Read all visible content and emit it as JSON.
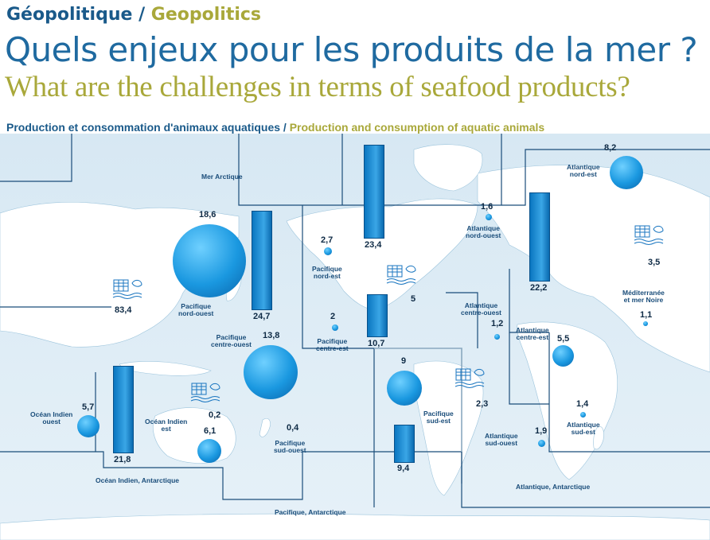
{
  "header": {
    "kicker_fr": "Géopolitique /",
    "kicker_en": "Geopolitics",
    "title_fr": "Quels enjeux pour les produits de la mer ?",
    "title_en": "What are the challenges in terms of seafood products?",
    "subtitle_fr": "Production et consommation d'animaux aquatiques /",
    "subtitle_en": "Production and consumption of aquatic animals"
  },
  "colors": {
    "title_blue": "#1f6aa0",
    "title_olive": "#a9a83a",
    "bubble_blue": "#1a98e0",
    "map_bg": "#d7e8f3",
    "land": "#ffffff"
  },
  "icons": [
    "aquaculture-icon"
  ],
  "zones": [
    {
      "name": "Mer Arctique"
    },
    {
      "name": "Atlantique\nnord-est",
      "value": "8,2",
      "fish": 8.2
    },
    {
      "name": "Atlantique\nnord-ouest",
      "value": "1,6",
      "fish": 1.6
    },
    {
      "name": "Pacifique\nnord-ouest",
      "value": "18,6",
      "fish": 18.6
    },
    {
      "name": "Pacifique\nnord-est",
      "value": "2,7",
      "fish": 2.7
    },
    {
      "name": "Pacifique\ncentre-ouest",
      "value": "13,8",
      "fish": 13.8
    },
    {
      "name": "Pacifique\ncentre-est",
      "value": "2",
      "fish": 2
    },
    {
      "name": "Atlantique\ncentre-ouest",
      "value": "1,2",
      "fish": 1.2
    },
    {
      "name": "Atlantique\ncentre-est",
      "value": "5,5",
      "fish": 5.5
    },
    {
      "name": "Méditerranée\net mer Noire",
      "value": "1,1",
      "fish": 1.1
    },
    {
      "name": "Pacifique\nsud-est",
      "value": "9",
      "fish": 9
    },
    {
      "name": "Océan Indien\nouest",
      "value": "5,7",
      "fish": 5.7
    },
    {
      "name": "Océan Indien\nest",
      "value": "6,1",
      "fish": 6.1
    },
    {
      "name": "Pacifique\nsud-ouest",
      "value": "0,4",
      "fish": 0.4
    },
    {
      "name": "Atlantique\nsud-ouest",
      "value": "1,9",
      "fish": 1.9
    },
    {
      "name": "Atlantique\nsud-est",
      "value": "1,4",
      "fish": 1.4
    },
    {
      "name": "Océan Indien, Antarctique"
    },
    {
      "name": "Pacifique, Antarctique"
    },
    {
      "name": "Atlantique, Antarctique"
    }
  ],
  "consumption_bars": [
    {
      "value": "24,7",
      "amount": 24.7
    },
    {
      "value": "23,4",
      "amount": 23.4
    },
    {
      "value": "22,2",
      "amount": 22.2
    },
    {
      "value": "10,7",
      "amount": 10.7
    },
    {
      "value": "21,8",
      "amount": 21.8
    },
    {
      "value": "9,4",
      "amount": 9.4
    }
  ],
  "aquaculture": [
    {
      "value": "83,4"
    },
    {
      "value": "5"
    },
    {
      "value": "3,5"
    },
    {
      "value": "2,3"
    },
    {
      "value": "0,2"
    }
  ]
}
